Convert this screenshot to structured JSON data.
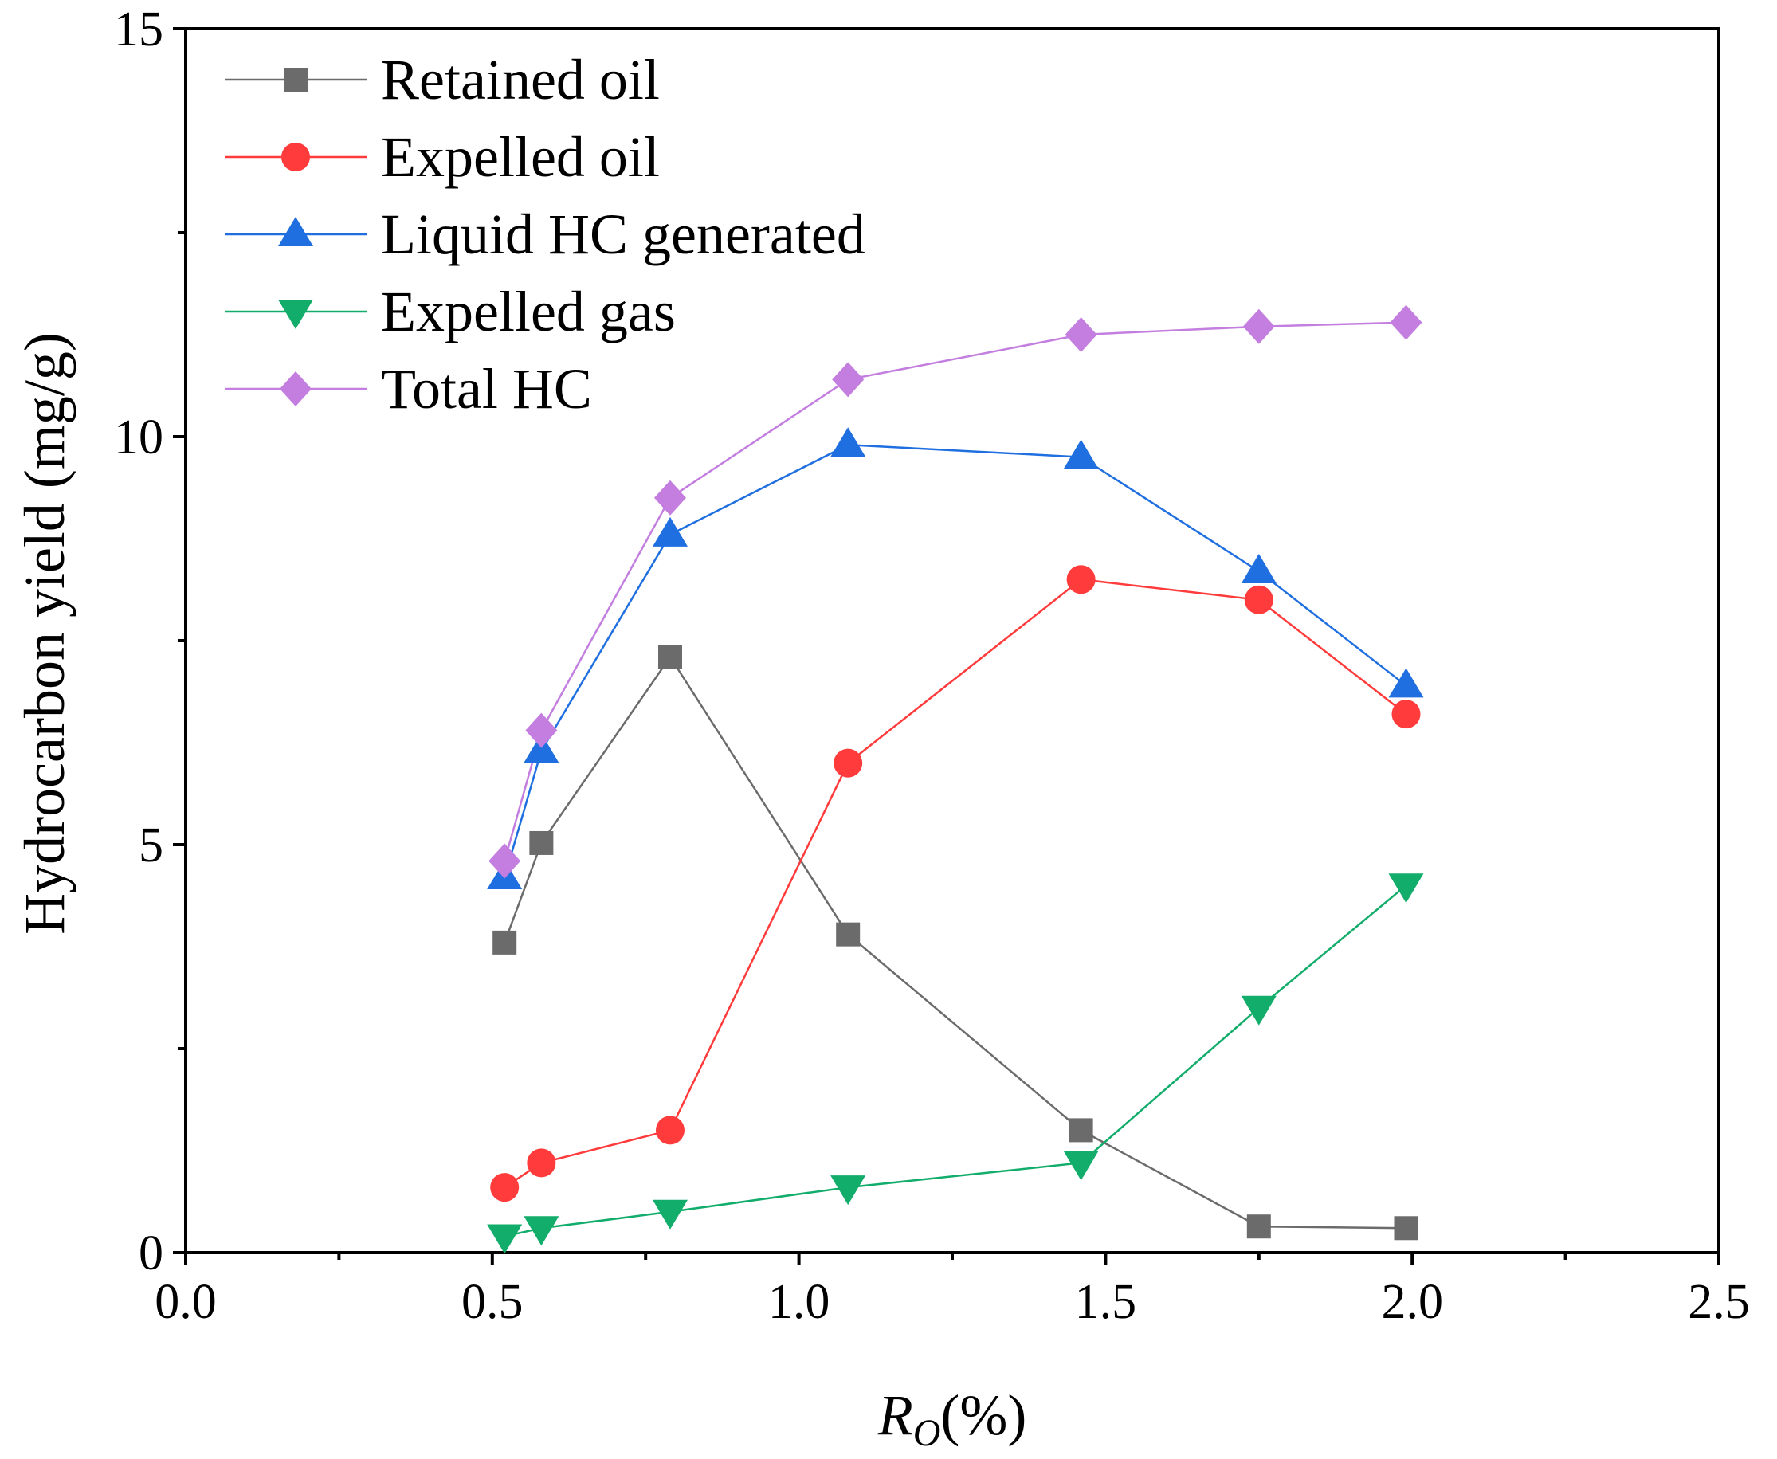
{
  "chart_data": {
    "type": "line",
    "title": "",
    "xlabel": "(%)",
    "xlabel_var": "R",
    "xlabel_sub": "O",
    "ylabel": "Hydrocarbon yield (mg/g)",
    "xlim": [
      0.0,
      2.5
    ],
    "ylim": [
      0,
      15
    ],
    "x_ticks": [
      0.0,
      0.5,
      1.0,
      1.5,
      2.0,
      2.5
    ],
    "x_tick_labels": [
      "0.0",
      "0.5",
      "1.0",
      "1.5",
      "2.0",
      "2.5"
    ],
    "x_minor_ticks": [
      0.25,
      0.75,
      1.25,
      1.75,
      2.25
    ],
    "y_ticks": [
      0,
      5,
      10,
      15
    ],
    "y_tick_labels": [
      "0",
      "5",
      "10",
      "15"
    ],
    "y_minor_ticks": [
      2.5,
      7.5,
      12.5
    ],
    "grid": false,
    "legend_position": "top-left",
    "x": [
      0.52,
      0.58,
      0.79,
      1.08,
      1.46,
      1.75,
      1.99
    ],
    "series": [
      {
        "name": "Retained oil",
        "marker": "square",
        "color": "#6b6b6b",
        "values": [
          3.8,
          5.02,
          7.3,
          3.9,
          1.5,
          0.32,
          0.3
        ]
      },
      {
        "name": "Expelled oil",
        "marker": "circle",
        "color": "#ff3b3b",
        "values": [
          0.8,
          1.1,
          1.5,
          6.0,
          8.25,
          8.0,
          6.6
        ]
      },
      {
        "name": "Liquid HC generated",
        "marker": "triangle-up",
        "color": "#1f6fe0",
        "values": [
          4.6,
          6.15,
          8.8,
          9.9,
          9.75,
          8.35,
          6.95
        ]
      },
      {
        "name": "Expelled gas",
        "marker": "triangle-down",
        "color": "#12ad6a",
        "values": [
          0.2,
          0.3,
          0.5,
          0.8,
          1.1,
          3.0,
          4.5
        ]
      },
      {
        "name": "Total HC",
        "marker": "diamond",
        "color": "#c37ee0",
        "values": [
          4.8,
          6.4,
          9.25,
          10.7,
          11.25,
          11.35,
          11.4
        ]
      }
    ]
  }
}
